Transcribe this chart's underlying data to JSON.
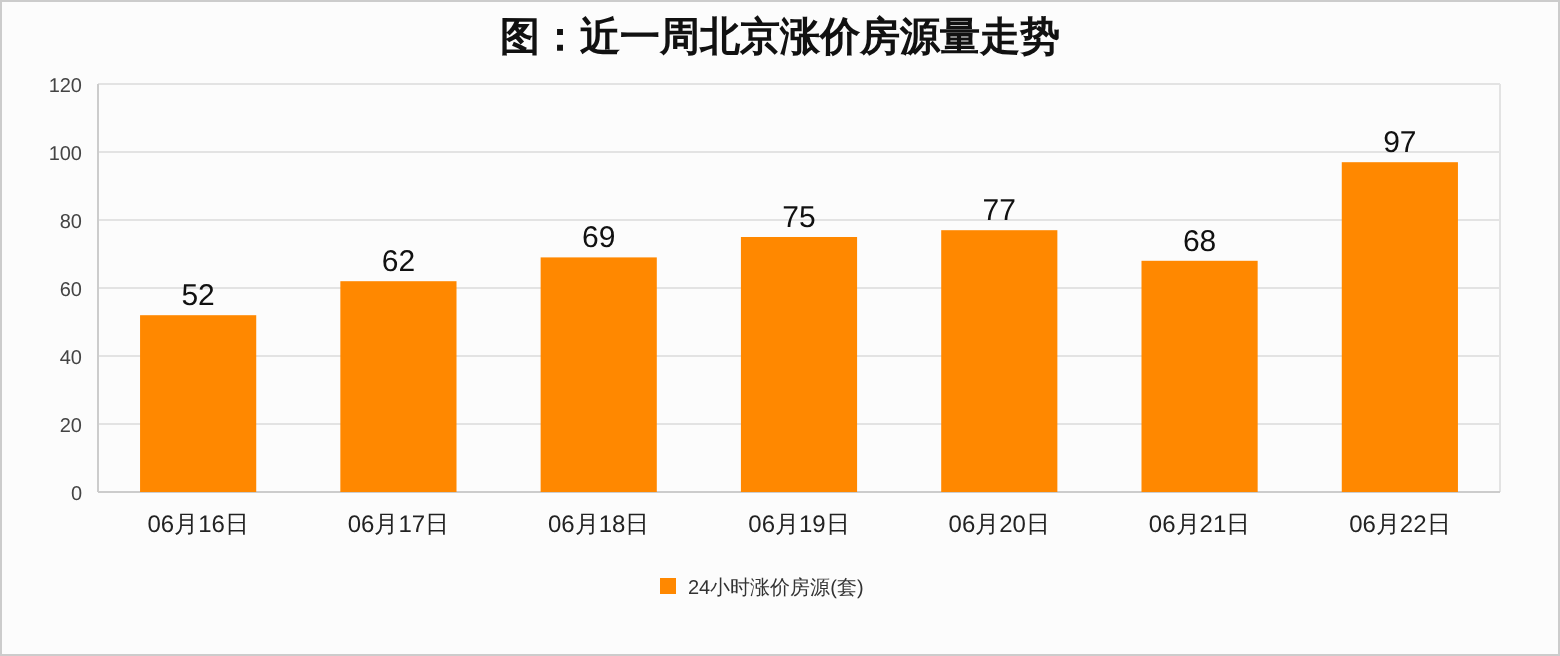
{
  "chart_data": {
    "type": "bar",
    "title": "图：近一周北京涨价房源量走势",
    "categories": [
      "06月16日",
      "06月17日",
      "06月18日",
      "06月19日",
      "06月20日",
      "06月21日",
      "06月22日"
    ],
    "series": [
      {
        "name": "24小时涨价房源(套)",
        "color": "#ff8800",
        "values": [
          52,
          62,
          69,
          75,
          77,
          68,
          97
        ]
      }
    ],
    "ylim": [
      0,
      120
    ],
    "yticks": [
      0,
      20,
      40,
      60,
      80,
      100,
      120
    ],
    "grid": "y",
    "legend": "bottom",
    "data_labels": true
  }
}
